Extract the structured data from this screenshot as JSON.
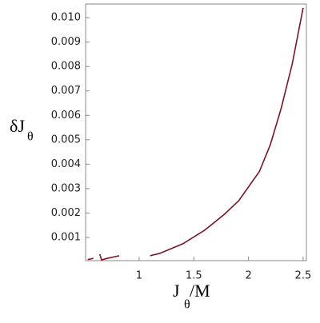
{
  "chart_data": {
    "type": "line",
    "xlabel": {
      "main": "J",
      "sub": "θ",
      "rest": "/M"
    },
    "ylabel": {
      "main": "δJ",
      "sub": "θ"
    },
    "x": [
      0.53,
      0.56,
      0.58,
      null,
      0.64,
      0.656,
      0.715,
      0.817,
      null,
      1.1,
      1.19,
      1.4,
      1.6,
      1.78,
      1.91,
      2.1,
      2.2,
      2.3,
      2.4,
      2.5
    ],
    "series": [
      {
        "color": "#7a1426",
        "values": [
          0.0001,
          0.00012,
          0.00015,
          null,
          0.00031,
          8e-05,
          0.00015,
          0.00025,
          null,
          0.00025,
          0.00035,
          0.00074,
          0.0013,
          0.00195,
          0.0025,
          0.0037,
          0.0048,
          0.0063,
          0.0081,
          0.0104
        ]
      }
    ],
    "xlim": [
      0.51,
      2.53
    ],
    "ylim": [
      5e-05,
      0.01056
    ],
    "xticks": [
      1,
      1.5,
      2,
      2.5
    ],
    "yticks": [
      0.001,
      0.002,
      0.003,
      0.004,
      0.005,
      0.006,
      0.007,
      0.008,
      0.009,
      {
        "value": 0.01,
        "label": "0.010"
      }
    ]
  }
}
